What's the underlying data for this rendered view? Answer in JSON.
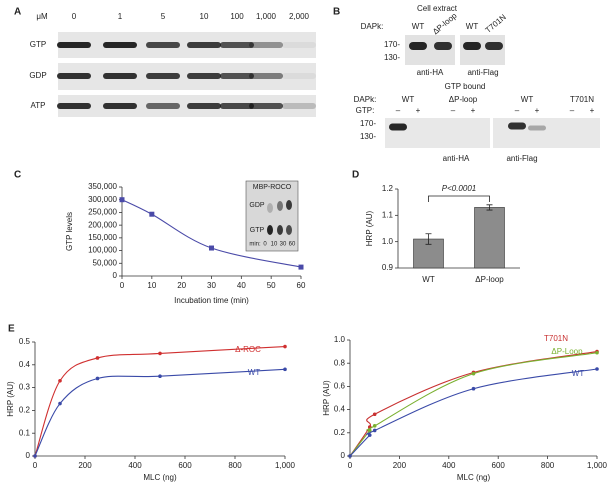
{
  "panel_labels": [
    "A",
    "B",
    "C",
    "D",
    "E"
  ],
  "blot_a": {
    "unit": "μM",
    "concentrations": [
      "0",
      "1",
      "5",
      "10",
      "100",
      "1,000",
      "2,000"
    ],
    "rows": [
      "GTP",
      "GDP",
      "ATP"
    ]
  },
  "blot_b": {
    "cell_extract": {
      "title": "Cell extract",
      "row_label": "DAPk:",
      "lanes": [
        "WT",
        "ΔP-loop",
        "WT",
        "T701N"
      ],
      "markers": [
        "170-",
        "130-"
      ],
      "antibodies": [
        "anti-HA",
        "anti-Flag"
      ]
    },
    "gtp_bound": {
      "title": "GTP bound",
      "row_label": "DAPk:",
      "lanes": [
        "WT",
        "ΔP-loop",
        "WT",
        "T701N"
      ],
      "gtp_label": "GTP:",
      "gtp_lanes": [
        "–",
        "+",
        "–",
        "+",
        "–",
        "+",
        "–",
        "+"
      ],
      "markers": [
        "170-",
        "130-"
      ],
      "antibodies": [
        "anti-HA",
        "anti-Flag"
      ]
    }
  },
  "chart_data": [
    {
      "type": "line",
      "marker": "square",
      "x": [
        0,
        10,
        30,
        60
      ],
      "values": [
        300000,
        243000,
        110000,
        35000
      ],
      "color": "#4a4aa8",
      "xlabel": "Incubation time (min)",
      "ylabel": "GTP levels",
      "xlim": [
        0,
        60
      ],
      "xticks": [
        0,
        10,
        20,
        30,
        40,
        50,
        60
      ],
      "ylim": [
        0,
        350000
      ],
      "yticks": [
        0,
        {
          "value": 50000,
          "label": "50,000"
        },
        {
          "value": 100000,
          "label": "100,000"
        },
        {
          "value": 150000,
          "label": "150,000"
        },
        {
          "value": 200000,
          "label": "200,000"
        },
        {
          "value": 250000,
          "label": "250,000"
        },
        {
          "value": 300000,
          "label": "300,000"
        },
        {
          "value": 350000,
          "label": "350,000"
        }
      ],
      "inset": {
        "title": "MBP-ROCO",
        "bands": [
          "GDP",
          "GTP"
        ],
        "time_label": "min:",
        "times": [
          "0",
          "10",
          "30",
          "60"
        ]
      }
    },
    {
      "type": "bar",
      "categories": [
        "WT",
        "ΔP-loop"
      ],
      "values": [
        1.01,
        1.13
      ],
      "errors": [
        0.02,
        0.01
      ],
      "color": "#8c8c8c",
      "ylabel": "HRP (AU)",
      "ylim": [
        0.9,
        1.2
      ],
      "yticks": [
        0.9,
        {
          "value": 1,
          "label": "1.0"
        },
        1.1,
        1.2
      ],
      "annotation": "P<0.0001"
    },
    {
      "type": "line",
      "marker": "circle",
      "x": [
        0,
        100,
        250,
        500,
        1000
      ],
      "series": [
        {
          "name": "Δ-ROC",
          "color": "#d03030",
          "values": [
            0,
            0.33,
            0.43,
            0.45,
            0.48
          ]
        },
        {
          "name": "WT",
          "color": "#3a4aa8",
          "values": [
            0,
            0.23,
            0.34,
            0.35,
            0.38
          ]
        }
      ],
      "xlabel": "MLC (ng)",
      "ylabel": "HRP (AU)",
      "xlim": [
        0,
        1000
      ],
      "xticks": [
        0,
        200,
        400,
        600,
        800,
        {
          "value": 1000,
          "label": "1,000"
        }
      ],
      "ylim": [
        0,
        0.5
      ],
      "yticks": [
        0,
        0.1,
        0.2,
        0.3,
        0.4,
        0.5
      ]
    },
    {
      "type": "line",
      "marker": "circle",
      "x": [
        0,
        80,
        100,
        500,
        1000
      ],
      "series": [
        {
          "name": "T701N",
          "color": "#c83030",
          "values": [
            0,
            0.25,
            0.36,
            0.72,
            0.9
          ]
        },
        {
          "name": "ΔP-Loop",
          "color": "#7ab030",
          "values": [
            0,
            0.22,
            0.26,
            0.71,
            0.89
          ]
        },
        {
          "name": "WT",
          "color": "#3a4aa8",
          "values": [
            0,
            0.18,
            0.22,
            0.58,
            0.75
          ]
        }
      ],
      "xlabel": "MLC (ng)",
      "ylabel": "HRP (AU)",
      "xlim": [
        0,
        1000
      ],
      "xticks": [
        0,
        200,
        400,
        600,
        800,
        {
          "value": 1000,
          "label": "1,000"
        }
      ],
      "ylim": [
        0,
        1
      ],
      "yticks": [
        0,
        0.2,
        0.4,
        0.6,
        0.8,
        {
          "value": 1,
          "label": "1.0"
        }
      ]
    }
  ]
}
